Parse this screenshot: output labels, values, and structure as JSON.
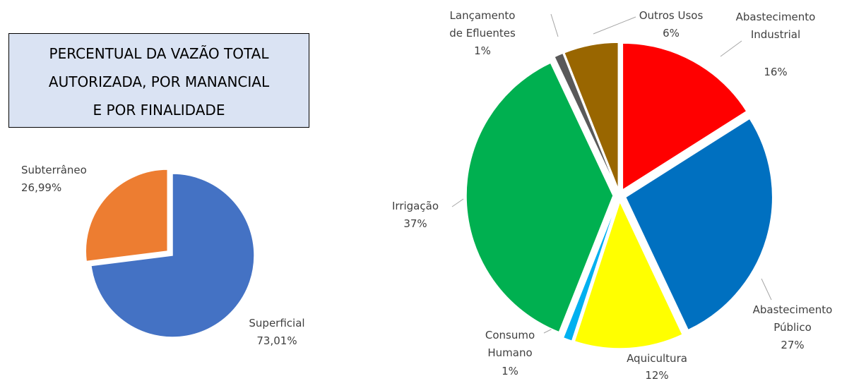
{
  "title": "PERCENTUAL DA VAZÃO TOTAL\nAUTORIZADA, POR MANANCIAL\nE POR FINALIDADE",
  "chart_data": [
    {
      "type": "pie",
      "categories": [
        "Superficial",
        "Subterrâneo"
      ],
      "values": [
        73.01,
        26.99
      ],
      "value_labels": [
        "73,01%",
        "26,99%"
      ],
      "colors": [
        "#4472c4",
        "#ed7d31"
      ],
      "exploded": [
        false,
        true
      ]
    },
    {
      "type": "pie",
      "categories": [
        "Abastecimento Industrial",
        "Abastecimento Público",
        "Aquicultura",
        "Consumo Humano",
        "Irrigação",
        "Lançamento de Efluentes",
        "Outros Usos"
      ],
      "values": [
        16,
        27,
        12,
        1,
        37,
        1,
        6
      ],
      "value_labels": [
        "16%",
        "27%",
        "12%",
        "1%",
        "37%",
        "1%",
        "6%"
      ],
      "colors": [
        "#ff0000",
        "#0070c0",
        "#ffff00",
        "#00b0f0",
        "#00b050",
        "#595959",
        "#996600"
      ],
      "exploded": [
        true,
        true,
        true,
        true,
        true,
        true,
        true
      ]
    }
  ]
}
